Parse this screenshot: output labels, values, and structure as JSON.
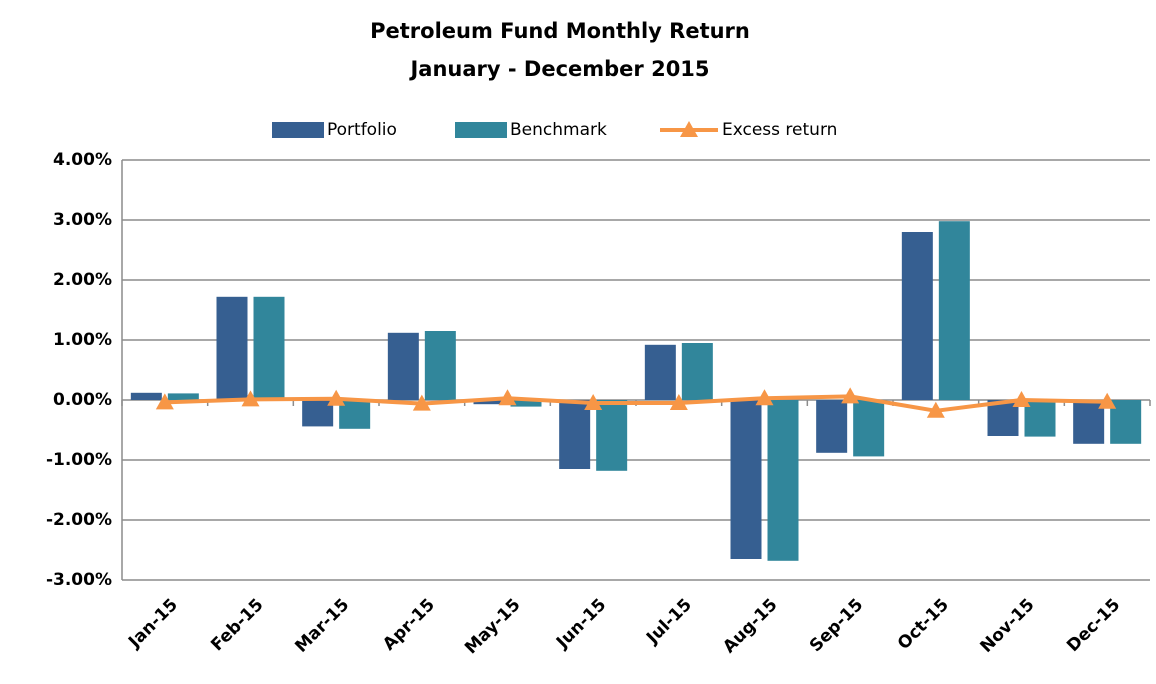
{
  "chart_data": {
    "type": "bar",
    "title": "Petroleum Fund Monthly Return",
    "subtitle": "January - December 2015",
    "categories": [
      "Jan-15",
      "Feb-15",
      "Mar-15",
      "Apr-15",
      "May-15",
      "Jun-15",
      "Jul-15",
      "Aug-15",
      "Sep-15",
      "Oct-15",
      "Nov-15",
      "Dec-15"
    ],
    "series": [
      {
        "name": "Portfolio",
        "type": "bar",
        "color": "#365f91",
        "values": [
          0.12,
          1.72,
          -0.44,
          1.12,
          -0.07,
          -1.15,
          0.92,
          -2.65,
          -0.88,
          2.8,
          -0.6,
          -0.73
        ]
      },
      {
        "name": "Benchmark",
        "type": "bar",
        "color": "#31869b",
        "values": [
          0.11,
          1.72,
          -0.48,
          1.15,
          -0.11,
          -1.18,
          0.95,
          -2.68,
          -0.94,
          2.98,
          -0.61,
          -0.73
        ]
      },
      {
        "name": "Excess return",
        "type": "line",
        "color": "#f79646",
        "values": [
          -0.04,
          0.01,
          0.02,
          -0.06,
          0.03,
          -0.05,
          -0.05,
          0.03,
          0.06,
          -0.18,
          0.0,
          -0.03
        ]
      }
    ],
    "ylim": [
      -3,
      4
    ],
    "yticks": [
      {
        "value": 4,
        "label": "4.00%"
      },
      {
        "value": 3,
        "label": "3.00%"
      },
      {
        "value": 2,
        "label": "2.00%"
      },
      {
        "value": 1,
        "label": "1.00%"
      },
      {
        "value": 0,
        "label": "0.00%"
      },
      {
        "value": -1,
        "label": "-1.00%"
      },
      {
        "value": -2,
        "label": "-2.00%"
      },
      {
        "value": -3,
        "label": "-3.00%"
      }
    ],
    "grid": true,
    "legend": "top"
  }
}
